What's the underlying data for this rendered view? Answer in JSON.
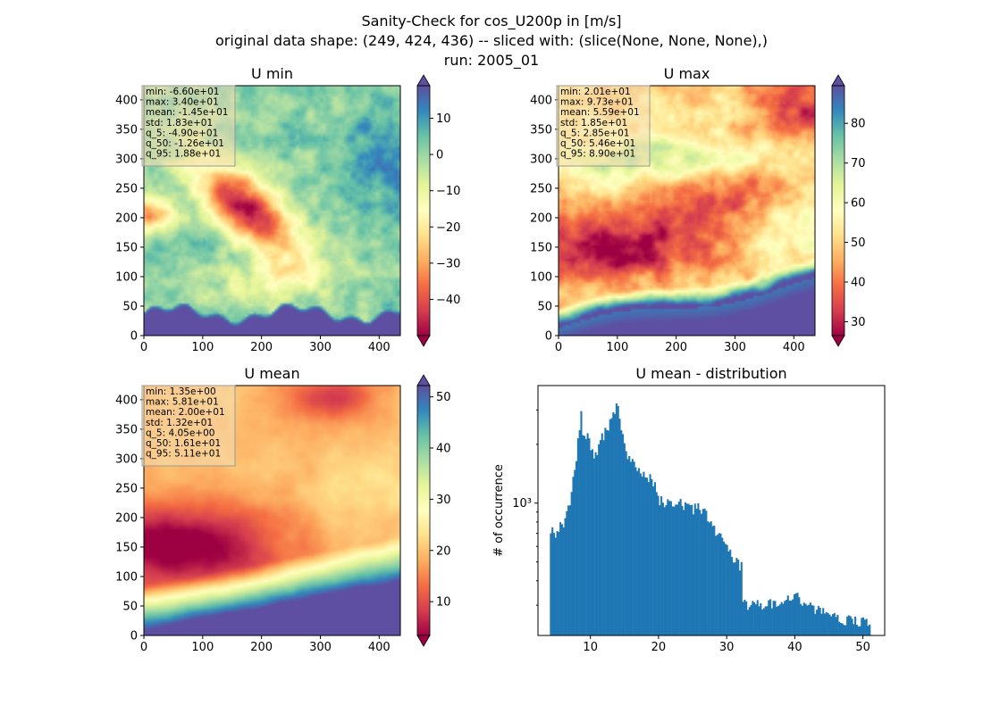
{
  "figure": {
    "suptitle": [
      "Sanity-Check for cos_U200p in [m/s]",
      "original data shape: (249, 424, 436) -- sliced with: (slice(None, None, None),)",
      "run: 2005_01"
    ]
  },
  "chart_data": [
    {
      "type": "heatmap",
      "title": "U min",
      "xlim": [
        0,
        436
      ],
      "ylim": [
        0,
        424
      ],
      "xticks": [
        0,
        100,
        200,
        300,
        400
      ],
      "yticks": [
        0,
        50,
        100,
        150,
        200,
        250,
        300,
        350,
        400
      ],
      "colormap": "Spectral",
      "colorbar": {
        "vmin": -50,
        "vmax": 19,
        "ticks": [
          10,
          0,
          -10,
          -20,
          -30,
          -40
        ],
        "extend": "both"
      },
      "stats_box": [
        "min: -6.60e+01",
        "max: 3.40e+01",
        "mean: -1.45e+01",
        "std: 1.83e+01",
        "q_5: -4.90e+01",
        "q_50: -1.26e+01",
        "q_95: 1.88e+01"
      ]
    },
    {
      "type": "heatmap",
      "title": "U max",
      "xlim": [
        0,
        436
      ],
      "ylim": [
        0,
        424
      ],
      "xticks": [
        0,
        100,
        200,
        300,
        400
      ],
      "yticks": [
        0,
        50,
        100,
        150,
        200,
        250,
        300,
        350,
        400
      ],
      "colormap": "Spectral",
      "colorbar": {
        "vmin": 26.5,
        "vmax": 89.5,
        "ticks": [
          80,
          70,
          60,
          50,
          40,
          30
        ],
        "extend": "both"
      },
      "stats_box": [
        "min: 2.01e+01",
        "max: 9.73e+01",
        "mean: 5.59e+01",
        "std: 1.85e+01",
        "q_5: 2.85e+01",
        "q_50: 5.46e+01",
        "q_95: 8.90e+01"
      ]
    },
    {
      "type": "heatmap",
      "title": "U mean",
      "xlim": [
        0,
        436
      ],
      "ylim": [
        0,
        424
      ],
      "xticks": [
        0,
        100,
        200,
        300,
        400
      ],
      "yticks": [
        0,
        50,
        100,
        150,
        200,
        250,
        300,
        350,
        400
      ],
      "colormap": "Spectral",
      "colorbar": {
        "vmin": 3.4,
        "vmax": 52.2,
        "ticks": [
          50,
          40,
          30,
          20,
          10
        ],
        "extend": "both"
      },
      "stats_box": [
        "min: 1.35e+00",
        "max: 5.81e+01",
        "mean: 2.00e+01",
        "std: 1.32e+01",
        "q_5: 4.05e+00",
        "q_50: 1.61e+01",
        "q_95: 5.11e+01"
      ]
    },
    {
      "type": "bar",
      "title": "U mean - distribution",
      "ylabel": "# of occurrence",
      "xlabel": "",
      "yscale": "log",
      "xlim": [
        2.3,
        53.2
      ],
      "ylim": [
        210,
        4000
      ],
      "xticks": [
        10,
        20,
        30,
        40,
        50
      ],
      "ytick_labels": [
        {
          "value": 1000,
          "label": "10³"
        }
      ],
      "color": "#1f77b4",
      "bins": {
        "start": 4.05,
        "end": 51.1
      },
      "anchors": [
        [
          4.05,
          720
        ],
        [
          4.5,
          700
        ],
        [
          5.0,
          720
        ],
        [
          5.5,
          740
        ],
        [
          6.0,
          780
        ],
        [
          6.5,
          860
        ],
        [
          7.0,
          1000
        ],
        [
          7.5,
          1300
        ],
        [
          8.0,
          1800
        ],
        [
          8.3,
          2200
        ],
        [
          8.6,
          3000
        ],
        [
          9.0,
          2100
        ],
        [
          9.5,
          2300
        ],
        [
          10.0,
          1900
        ],
        [
          10.5,
          1750
        ],
        [
          11.0,
          1850
        ],
        [
          11.5,
          2100
        ],
        [
          12.0,
          2250
        ],
        [
          12.5,
          2400
        ],
        [
          13.0,
          2700
        ],
        [
          13.5,
          2900
        ],
        [
          13.8,
          3300
        ],
        [
          14.3,
          2600
        ],
        [
          15.0,
          2000
        ],
        [
          15.8,
          1650
        ],
        [
          17.0,
          1450
        ],
        [
          18.5,
          1350
        ],
        [
          19.5,
          1280
        ],
        [
          20.0,
          1050
        ],
        [
          21.0,
          1000
        ],
        [
          22.0,
          990
        ],
        [
          23.0,
          1020
        ],
        [
          24.0,
          960
        ],
        [
          25.0,
          920
        ],
        [
          26.0,
          950
        ],
        [
          27.0,
          880
        ],
        [
          28.0,
          760
        ],
        [
          29.0,
          680
        ],
        [
          30.0,
          600
        ],
        [
          31.0,
          530
        ],
        [
          32.2,
          470
        ],
        [
          32.4,
          310
        ],
        [
          33.5,
          295
        ],
        [
          35.0,
          300
        ],
        [
          36.0,
          305
        ],
        [
          38.0,
          315
        ],
        [
          39.0,
          320
        ],
        [
          40.0,
          330
        ],
        [
          41.0,
          320
        ],
        [
          42.0,
          300
        ],
        [
          43.0,
          285
        ],
        [
          44.0,
          275
        ],
        [
          45.0,
          268
        ],
        [
          46.0,
          262
        ],
        [
          47.0,
          256
        ],
        [
          48.0,
          252
        ],
        [
          49.0,
          248
        ],
        [
          50.0,
          244
        ],
        [
          51.1,
          240
        ]
      ]
    }
  ]
}
